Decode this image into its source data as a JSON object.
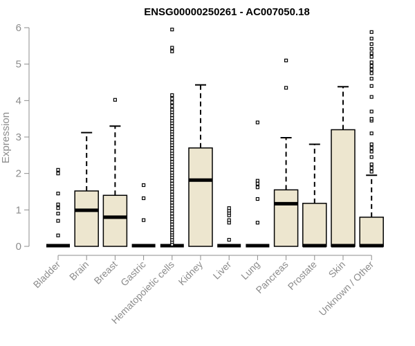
{
  "chart_data": {
    "type": "boxplot",
    "title": "ENSG00000250261 - AC007050.18",
    "xlabel": "",
    "ylabel": "Expression",
    "ylim": [
      0,
      6
    ],
    "yticks": [
      0,
      1,
      2,
      3,
      4,
      5,
      6
    ],
    "grid": false,
    "legend": "none",
    "box_color": "#ede6cf",
    "categories": [
      "Bladder",
      "Brain",
      "Breast",
      "Gastric",
      "Hematopoietic cells",
      "Kidney",
      "Liver",
      "Lung",
      "Pancreas",
      "Prostate",
      "Skin",
      "Unknown / Other"
    ],
    "boxes": [
      {
        "q1": 0,
        "median": 0,
        "q3": 0,
        "whisker_low": 0,
        "whisker_high": 0,
        "outliers": [
          0.3,
          0.7,
          0.9,
          1.05,
          1.15,
          1.45,
          2.0,
          2.1
        ]
      },
      {
        "q1": 0,
        "median": 0.97,
        "q3": 1.52,
        "whisker_low": 0,
        "whisker_high": 3.12,
        "outliers": []
      },
      {
        "q1": 0,
        "median": 0.78,
        "q3": 1.4,
        "whisker_low": 0,
        "whisker_high": 3.3,
        "outliers": [
          4.02
        ]
      },
      {
        "q1": 0,
        "median": 0,
        "q3": 0,
        "whisker_low": 0,
        "whisker_high": 0,
        "outliers": [
          0.72,
          1.32,
          1.68
        ]
      },
      {
        "q1": 0,
        "median": 0,
        "q3": 0,
        "whisker_low": 0,
        "whisker_high": 0,
        "outliers": [
          0.05,
          0.12,
          0.18,
          0.25,
          0.32,
          0.38,
          0.45,
          0.52,
          0.6,
          0.68,
          0.75,
          0.82,
          0.9,
          0.98,
          1.05,
          1.12,
          1.2,
          1.28,
          1.35,
          1.42,
          1.5,
          1.58,
          1.65,
          1.72,
          1.8,
          1.88,
          1.95,
          2.02,
          2.1,
          2.18,
          2.25,
          2.32,
          2.4,
          2.48,
          2.55,
          2.62,
          2.7,
          2.78,
          2.85,
          2.92,
          3.0,
          3.08,
          3.15,
          3.22,
          3.3,
          3.38,
          3.45,
          3.52,
          3.6,
          3.68,
          3.75,
          3.85,
          3.95,
          4.05,
          4.15,
          5.35,
          5.45,
          5.95
        ]
      },
      {
        "q1": 0,
        "median": 1.8,
        "q3": 2.7,
        "whisker_low": 0,
        "whisker_high": 4.43,
        "outliers": []
      },
      {
        "q1": 0,
        "median": 0,
        "q3": 0,
        "whisker_low": 0,
        "whisker_high": 0,
        "outliers": [
          0.18,
          0.65,
          0.72,
          0.85,
          0.92,
          0.98,
          1.05
        ]
      },
      {
        "q1": 0,
        "median": 0,
        "q3": 0,
        "whisker_low": 0,
        "whisker_high": 0,
        "outliers": [
          0.65,
          1.3,
          1.62,
          1.72,
          1.8,
          3.4
        ]
      },
      {
        "q1": 0,
        "median": 1.15,
        "q3": 1.55,
        "whisker_low": 0,
        "whisker_high": 2.98,
        "outliers": [
          4.35,
          5.1
        ]
      },
      {
        "q1": 0,
        "median": 0,
        "q3": 1.18,
        "whisker_low": 0,
        "whisker_high": 2.8,
        "outliers": []
      },
      {
        "q1": 0,
        "median": 0,
        "q3": 3.2,
        "whisker_low": 0,
        "whisker_high": 4.38,
        "outliers": []
      },
      {
        "q1": 0,
        "median": 0,
        "q3": 0.8,
        "whisker_low": 0,
        "whisker_high": 1.95,
        "outliers": [
          2.05,
          2.15,
          2.25,
          2.45,
          2.6,
          2.7,
          2.8,
          3.1,
          3.45,
          3.5,
          3.7,
          4.1,
          4.4,
          4.6,
          4.75,
          4.85,
          4.95,
          5.05,
          5.2,
          5.3,
          5.42,
          5.55,
          5.7,
          5.88
        ]
      }
    ]
  }
}
